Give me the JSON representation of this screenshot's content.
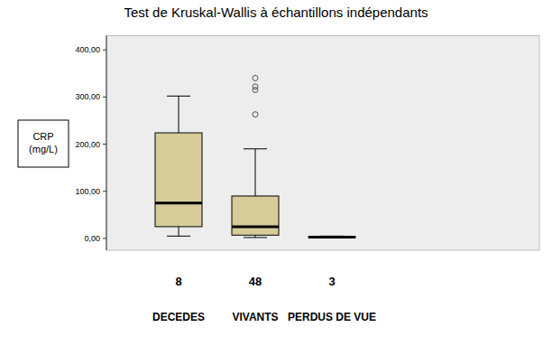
{
  "chart_data": {
    "type": "box",
    "title": "Test de Kruskal-Wallis à échantillons indépendants",
    "y_label": "CRP (mg/L)",
    "categories": [
      "DECEDES",
      "VIVANTS",
      "PERDUS DE VUE"
    ],
    "n": [
      8,
      48,
      3
    ],
    "stats": {
      "min": [
        5,
        2,
        1
      ],
      "q1": [
        25,
        7,
        2
      ],
      "median": [
        75,
        25,
        3
      ],
      "q3": [
        224,
        90,
        4
      ],
      "max": [
        302,
        190,
        5
      ]
    },
    "outliers": [
      [],
      [
        263,
        315,
        322,
        340
      ],
      []
    ],
    "color": "#d6cc9a",
    "ylim": [
      -25,
      430
    ],
    "yticks": [
      {
        "value": 0,
        "label": "0,00"
      },
      {
        "value": 100,
        "label": "100,00"
      },
      {
        "value": 200,
        "label": "200,00"
      },
      {
        "value": 300,
        "label": "300,00"
      },
      {
        "value": 400,
        "label": "400,00"
      }
    ],
    "grid": false
  }
}
